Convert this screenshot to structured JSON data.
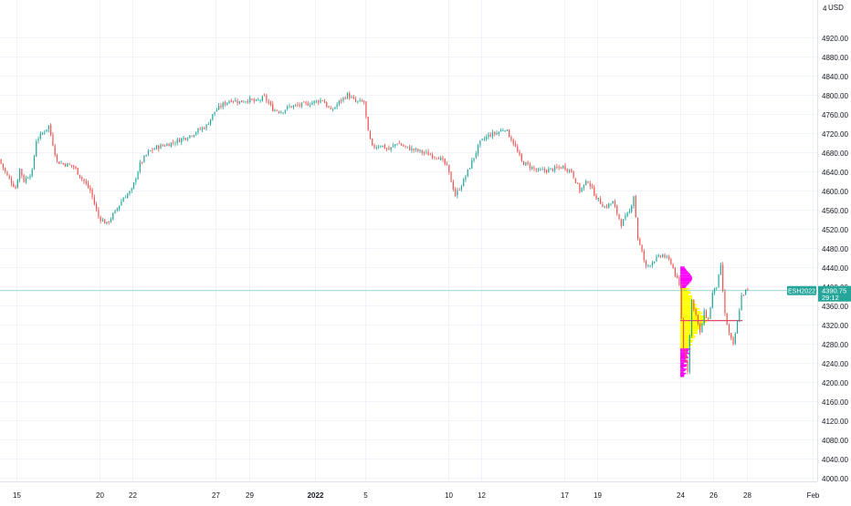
{
  "chart_data": {
    "type": "candlestick",
    "symbol": "ESH2022",
    "currency": "USD",
    "last_price_label": "4390.75",
    "countdown_label": "29:12",
    "last_price": 4390.75,
    "y_axis": {
      "ylim": [
        3992,
        4998
      ],
      "ticks": [
        4000,
        4040,
        4080,
        4120,
        4160,
        4200,
        4240,
        4280,
        4320,
        4360,
        4400,
        4440,
        4480,
        4520,
        4560,
        4600,
        4640,
        4680,
        4720,
        4760,
        4800,
        4840,
        4880,
        4920
      ],
      "tick_labels": [
        "4000.00",
        "4040.00",
        "4080.00",
        "4120.00",
        "4160.00",
        "4200.00",
        "4240.00",
        "4280.00",
        "4320.00",
        "4360.00",
        "4400.00",
        "4440.00",
        "4480.00",
        "4520.00",
        "4560.00",
        "4600.00",
        "4640.00",
        "4680.00",
        "4720.00",
        "4760.00",
        "4800.00",
        "4840.00",
        "4880.00",
        "4920.00"
      ],
      "top_label": "4"
    },
    "x_axis": {
      "xlim": [
        "2021-12-14T00:00",
        "2022-02-01T06:00"
      ],
      "ticks": [
        {
          "label": "15",
          "date": "2021-12-15",
          "bold": false
        },
        {
          "label": "20",
          "date": "2021-12-20",
          "bold": false
        },
        {
          "label": "22",
          "date": "2021-12-22",
          "bold": false
        },
        {
          "label": "27",
          "date": "2021-12-27",
          "bold": false
        },
        {
          "label": "29",
          "date": "2021-12-29",
          "bold": false
        },
        {
          "label": "2022",
          "date": "2022-01-02",
          "bold": true
        },
        {
          "label": "5",
          "date": "2022-01-05",
          "bold": false
        },
        {
          "label": "10",
          "date": "2022-01-10",
          "bold": false
        },
        {
          "label": "12",
          "date": "2022-01-12",
          "bold": false
        },
        {
          "label": "17",
          "date": "2022-01-17",
          "bold": false
        },
        {
          "label": "19",
          "date": "2022-01-19",
          "bold": false
        },
        {
          "label": "24",
          "date": "2022-01-24",
          "bold": false
        },
        {
          "label": "26",
          "date": "2022-01-26",
          "bold": false
        },
        {
          "label": "28",
          "date": "2022-01-28",
          "bold": false
        },
        {
          "label": "Feb",
          "date": "2022-02-01",
          "bold": false
        }
      ]
    },
    "price_path": [
      [
        "2021-12-14T00:00",
        4665
      ],
      [
        "2021-12-14T12:00",
        4630
      ],
      [
        "2021-12-15T00:00",
        4605
      ],
      [
        "2021-12-15T06:00",
        4645
      ],
      [
        "2021-12-15T12:00",
        4620
      ],
      [
        "2021-12-16T00:00",
        4640
      ],
      [
        "2021-12-16T06:00",
        4705
      ],
      [
        "2021-12-16T12:00",
        4715
      ],
      [
        "2021-12-17T00:00",
        4735
      ],
      [
        "2021-12-17T12:00",
        4660
      ],
      [
        "2021-12-18T12:00",
        4650
      ],
      [
        "2021-12-19T12:00",
        4600
      ],
      [
        "2021-12-20T00:00",
        4545
      ],
      [
        "2021-12-20T12:00",
        4530
      ],
      [
        "2021-12-21T00:00",
        4555
      ],
      [
        "2021-12-21T12:00",
        4585
      ],
      [
        "2021-12-22T00:00",
        4600
      ],
      [
        "2021-12-22T12:00",
        4655
      ],
      [
        "2021-12-23T00:00",
        4680
      ],
      [
        "2021-12-23T12:00",
        4690
      ],
      [
        "2021-12-24T12:00",
        4700
      ],
      [
        "2021-12-25T12:00",
        4715
      ],
      [
        "2021-12-26T12:00",
        4735
      ],
      [
        "2021-12-27T00:00",
        4765
      ],
      [
        "2021-12-27T12:00",
        4780
      ],
      [
        "2021-12-28T00:00",
        4790
      ],
      [
        "2021-12-28T12:00",
        4785
      ],
      [
        "2021-12-29T00:00",
        4790
      ],
      [
        "2021-12-29T12:00",
        4785
      ],
      [
        "2021-12-30T00:00",
        4795
      ],
      [
        "2021-12-30T12:00",
        4770
      ],
      [
        "2021-12-31T00:00",
        4765
      ],
      [
        "2021-12-31T12:00",
        4775
      ],
      [
        "2022-01-01T12:00",
        4780
      ],
      [
        "2022-01-02T12:00",
        4790
      ],
      [
        "2022-01-03T00:00",
        4765
      ],
      [
        "2022-01-03T12:00",
        4785
      ],
      [
        "2022-01-04T00:00",
        4800
      ],
      [
        "2022-01-04T12:00",
        4785
      ],
      [
        "2022-01-05T00:00",
        4785
      ],
      [
        "2022-01-05T06:00",
        4720
      ],
      [
        "2022-01-05T12:00",
        4690
      ],
      [
        "2022-01-06T00:00",
        4695
      ],
      [
        "2022-01-06T12:00",
        4685
      ],
      [
        "2022-01-07T00:00",
        4700
      ],
      [
        "2022-01-07T12:00",
        4690
      ],
      [
        "2022-01-08T12:00",
        4680
      ],
      [
        "2022-01-09T12:00",
        4670
      ],
      [
        "2022-01-10T00:00",
        4650
      ],
      [
        "2022-01-10T12:00",
        4590
      ],
      [
        "2022-01-11T00:00",
        4620
      ],
      [
        "2022-01-11T12:00",
        4660
      ],
      [
        "2022-01-12T00:00",
        4700
      ],
      [
        "2022-01-12T12:00",
        4715
      ],
      [
        "2022-01-13T00:00",
        4720
      ],
      [
        "2022-01-13T12:00",
        4730
      ],
      [
        "2022-01-14T00:00",
        4700
      ],
      [
        "2022-01-14T12:00",
        4660
      ],
      [
        "2022-01-15T12:00",
        4640
      ],
      [
        "2022-01-16T12:00",
        4645
      ],
      [
        "2022-01-17T00:00",
        4650
      ],
      [
        "2022-01-17T12:00",
        4640
      ],
      [
        "2022-01-18T00:00",
        4600
      ],
      [
        "2022-01-18T12:00",
        4620
      ],
      [
        "2022-01-19T00:00",
        4585
      ],
      [
        "2022-01-19T12:00",
        4565
      ],
      [
        "2022-01-20T00:00",
        4575
      ],
      [
        "2022-01-20T12:00",
        4530
      ],
      [
        "2022-01-21T00:00",
        4555
      ],
      [
        "2022-01-21T06:00",
        4590
      ],
      [
        "2022-01-21T12:00",
        4500
      ],
      [
        "2022-01-22T00:00",
        4440
      ],
      [
        "2022-01-22T12:00",
        4455
      ],
      [
        "2022-01-23T00:00",
        4465
      ],
      [
        "2022-01-23T12:00",
        4450
      ],
      [
        "2022-01-24T00:00",
        4400
      ],
      [
        "2022-01-24T06:00",
        4265
      ],
      [
        "2022-01-24T12:00",
        4225
      ],
      [
        "2022-01-24T18:00",
        4370
      ],
      [
        "2022-01-25T00:00",
        4340
      ],
      [
        "2022-01-25T06:00",
        4300
      ],
      [
        "2022-01-25T12:00",
        4345
      ],
      [
        "2022-01-25T18:00",
        4330
      ],
      [
        "2022-01-26T00:00",
        4385
      ],
      [
        "2022-01-26T06:00",
        4400
      ],
      [
        "2022-01-26T12:00",
        4440
      ],
      [
        "2022-01-26T18:00",
        4340
      ],
      [
        "2022-01-27T00:00",
        4300
      ],
      [
        "2022-01-27T06:00",
        4275
      ],
      [
        "2022-01-27T12:00",
        4325
      ],
      [
        "2022-01-27T18:00",
        4380
      ],
      [
        "2022-01-28T00:00",
        4390
      ]
    ],
    "volume_profile": {
      "date": "2022-01-24",
      "levels": [
        4210,
        4440
      ],
      "value_area": [
        4270,
        4395
      ],
      "poc": 4328,
      "poc_color": "#e8466a",
      "value_area_color": "#ffff00",
      "outside_color": "#ff00ff"
    },
    "colors": {
      "up": "#26a69a",
      "down": "#ef5350",
      "last_price_line": "#26a69a",
      "grid": "#f0f3fa",
      "axis_text": "#131722"
    },
    "grid": true
  }
}
